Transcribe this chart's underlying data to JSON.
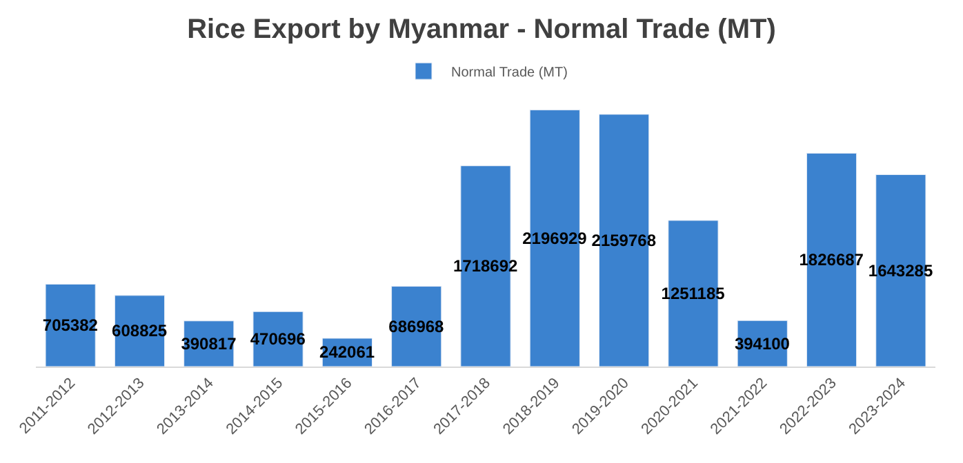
{
  "chart_data": {
    "type": "bar",
    "title": "Rice Export by Myanmar - Normal Trade (MT)",
    "categories": [
      "2011-2012",
      "2012-2013",
      "2013-2014",
      "2014-2015",
      "2015-2016",
      "2016-2017",
      "2017-2018",
      "2018-2019",
      "2019-2020",
      "2020-2021",
      "2021-2022",
      "2022-2023",
      "2023-2024"
    ],
    "series": [
      {
        "name": "Normal Trade (MT)",
        "color": "#3b82cf",
        "values": [
          705382,
          608825,
          390817,
          470696,
          242061,
          686968,
          1718692,
          2196929,
          2159768,
          1251185,
          394100,
          1826687,
          1643285
        ]
      }
    ],
    "data_labels": true,
    "legend": "top",
    "tick_labels": "x"
  }
}
